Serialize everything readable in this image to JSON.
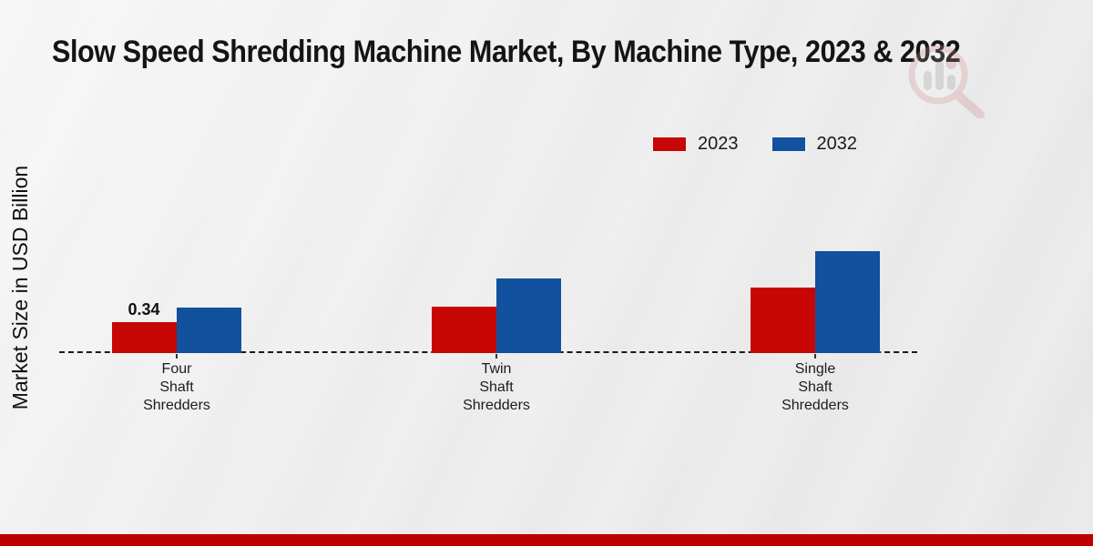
{
  "title": "Slow Speed Shredding Machine Market, By Machine Type, 2023 & 2032",
  "colors": {
    "series_2023": "#c70606",
    "series_2032": "#11519d",
    "footer_band": "#c00000",
    "axis_line": "#1a1a1a"
  },
  "chart_data": {
    "type": "bar",
    "title": "Slow Speed Shredding Machine Market, By Machine Type, 2023 & 2032",
    "ylabel": "Market Size in USD Billion",
    "xlabel": "",
    "categories": [
      "Four\nShaft\nShredders",
      "Twin\nShaft\nShredders",
      "Single\nShaft\nShredders"
    ],
    "series": [
      {
        "name": "2023",
        "color": "#c70606",
        "values": [
          0.34,
          0.51,
          0.72
        ]
      },
      {
        "name": "2032",
        "color": "#11519d",
        "values": [
          0.5,
          0.82,
          1.12
        ]
      }
    ],
    "bar_labels": [
      {
        "series": 0,
        "category": 0,
        "text": "0.34"
      }
    ],
    "ylim": [
      0,
      1.2
    ],
    "grid": false,
    "legend_position": "top-right",
    "baseline_style": "dashed"
  }
}
